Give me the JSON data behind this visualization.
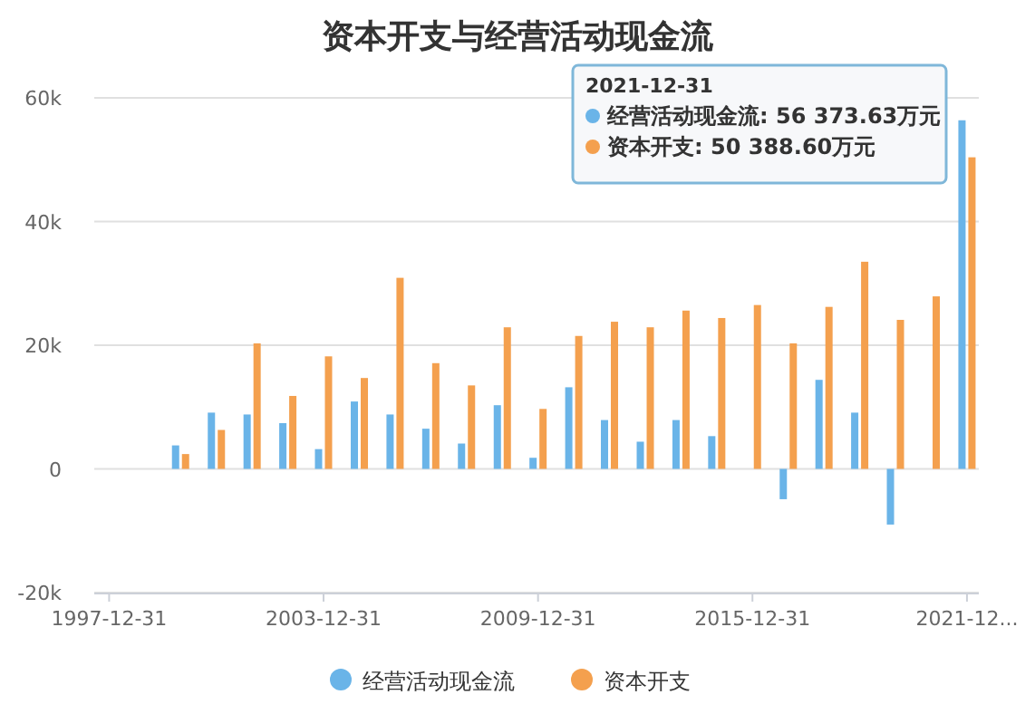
{
  "chart_data": {
    "type": "bar",
    "title": "资本开支与经营活动现金流",
    "x": [
      "1999-12-31",
      "2000-12-31",
      "2001-12-31",
      "2002-12-31",
      "2003-12-31",
      "2004-12-31",
      "2005-12-31",
      "2006-12-31",
      "2007-12-31",
      "2008-12-31",
      "2009-12-31",
      "2010-12-31",
      "2011-12-31",
      "2012-12-31",
      "2013-12-31",
      "2014-12-31",
      "2015-12-31",
      "2016-12-31",
      "2017-12-31",
      "2018-12-31",
      "2019-12-31",
      "2020-12-31",
      "2021-12-31"
    ],
    "series": [
      {
        "name": "经营活动现金流",
        "color": "#6ab4e8",
        "values": [
          3800,
          9100,
          8800,
          7400,
          3200,
          10900,
          8800,
          6500,
          4100,
          10300,
          1800,
          13200,
          7900,
          4400,
          7900,
          5300,
          null,
          -4900,
          14400,
          9100,
          -9000,
          null,
          56373.63
        ]
      },
      {
        "name": "资本开支",
        "color": "#f4a04e",
        "values": [
          2400,
          6300,
          20300,
          11800,
          18200,
          14700,
          30900,
          17100,
          13500,
          22900,
          9700,
          21500,
          23800,
          22900,
          25600,
          24400,
          26500,
          20300,
          26200,
          33500,
          24100,
          27900,
          50388.6
        ]
      }
    ],
    "xlim": [
      "1997-08-01",
      "2022-05-01"
    ],
    "xticks": [
      {
        "value": "1997-12-31",
        "label": "1997-12-31"
      },
      {
        "value": "2003-12-31",
        "label": "2003-12-31"
      },
      {
        "value": "2009-12-31",
        "label": "2009-12-31"
      },
      {
        "value": "2015-12-31",
        "label": "2015-12-31"
      },
      {
        "value": "2021-12-31",
        "label": "2021-12..."
      }
    ],
    "ylim": [
      -20000,
      60000
    ],
    "yticks": [
      {
        "value": -20000,
        "label": "-20k"
      },
      {
        "value": 0,
        "label": "0"
      },
      {
        "value": 20000,
        "label": "20k"
      },
      {
        "value": 40000,
        "label": "40k"
      },
      {
        "value": 60000,
        "label": "60k"
      }
    ],
    "grid": "y",
    "legend": "bottom",
    "annotations": [
      "2021-12-31",
      "经营活动现金流: 56 373.63万元",
      "资本开支: 50 388.60万元"
    ]
  }
}
